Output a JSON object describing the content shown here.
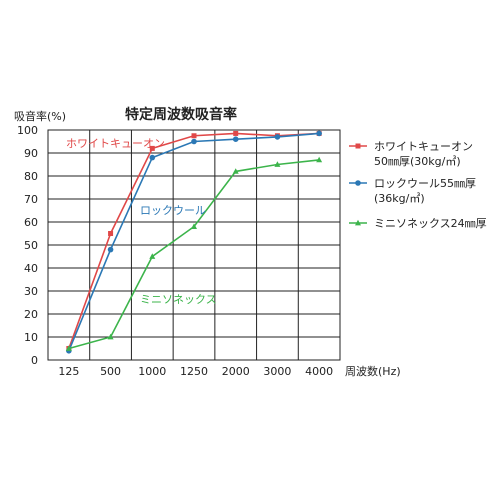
{
  "chart_data": {
    "type": "line",
    "title": "特定周波数吸音率",
    "ylabel": "吸音率(%)",
    "xlabel": "周波数(Hz)",
    "ylim": [
      0,
      100
    ],
    "yticks": [
      "0",
      "10",
      "20",
      "30",
      "40",
      "50",
      "60",
      "70",
      "80",
      "90",
      "100"
    ],
    "categories": [
      "125",
      "500",
      "1000",
      "1250",
      "2000",
      "3000",
      "4000"
    ],
    "grid": true,
    "legend_position": "right",
    "series": [
      {
        "name": "ホワイトキューオン",
        "legend_lines": [
          "ホワイトキューオン",
          "50㎜厚(30kg/㎥)"
        ],
        "color": "#e04848",
        "marker": "square",
        "values": [
          5,
          55,
          92,
          97.5,
          98.5,
          97.5,
          98.5
        ]
      },
      {
        "name": "ロックウール",
        "legend_lines": [
          "ロックウール55㎜厚",
          "(36kg/㎥)"
        ],
        "color": "#2b78b5",
        "marker": "circle",
        "values": [
          4,
          48,
          88,
          95,
          96,
          97,
          98.5
        ]
      },
      {
        "name": "ミニソネックス",
        "legend_lines": [
          "ミニソネックス24㎜厚"
        ],
        "color": "#3cb44b",
        "marker": "triangle",
        "values": [
          5,
          10,
          45,
          58,
          82,
          85,
          87
        ]
      }
    ],
    "annotations": [
      {
        "text": "ホワイトキューオン",
        "series": 0
      },
      {
        "text": "ロックウール",
        "series": 1
      },
      {
        "text": "ミニソネックス",
        "series": 2
      }
    ]
  }
}
